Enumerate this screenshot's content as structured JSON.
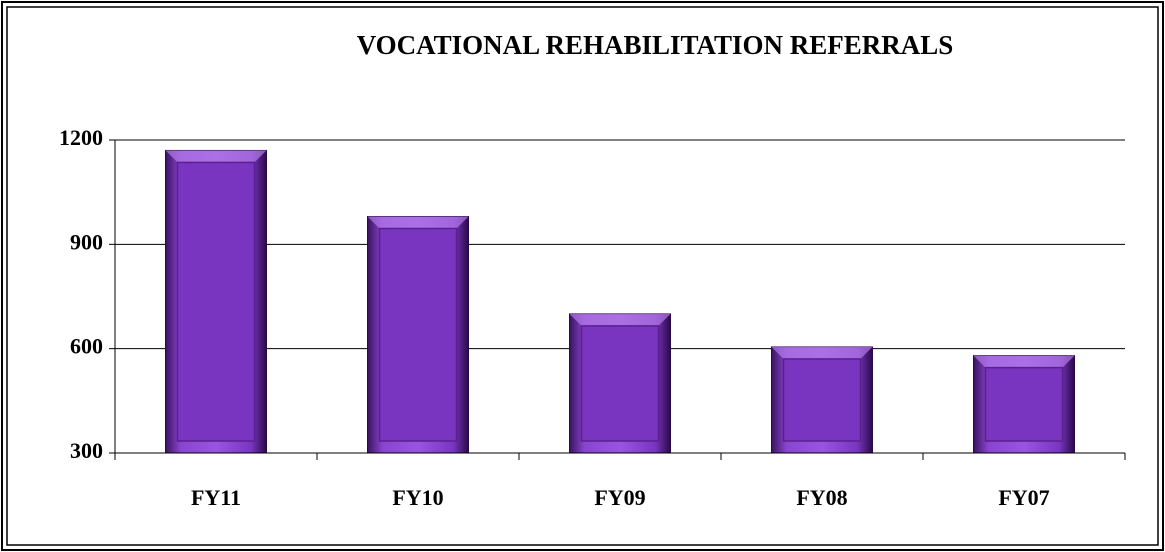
{
  "chart_data": {
    "type": "bar",
    "title": "VOCATIONAL REHABILITATION REFERRALS",
    "categories": [
      "FY11",
      "FY10",
      "FY09",
      "FY08",
      "FY07"
    ],
    "values": [
      1170,
      980,
      700,
      605,
      580
    ],
    "color": "#7a35c0",
    "ylim": [
      300,
      1200
    ],
    "yticks": [
      300,
      600,
      900,
      1200
    ],
    "grid": true
  }
}
